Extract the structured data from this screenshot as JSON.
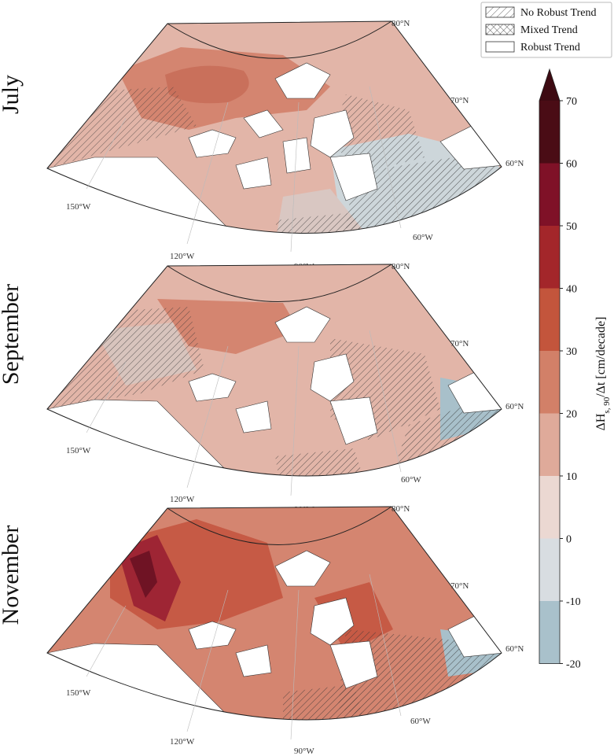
{
  "panels": [
    {
      "label": "July"
    },
    {
      "label": "September"
    },
    {
      "label": "November"
    }
  ],
  "latitude_labels": [
    "80°N",
    "70°N",
    "60°N"
  ],
  "longitude_labels": [
    "150°W",
    "120°W",
    "90°W",
    "60°W"
  ],
  "legend": {
    "items": [
      {
        "label": "No Robust Trend",
        "pattern": "hatch-diagonal"
      },
      {
        "label": "Mixed Trend",
        "pattern": "hatch-cross"
      },
      {
        "label": "Robust Trend",
        "pattern": "none"
      }
    ]
  },
  "colorbar": {
    "title": "ΔH",
    "title_sub": "s, 90",
    "title_rest": "/Δt [cm/decade]",
    "ticks": [
      "70",
      "60",
      "50",
      "40",
      "30",
      "20",
      "10",
      "0",
      "-10",
      "-20"
    ],
    "extend": "max",
    "colors": [
      "#4a0c15",
      "#7f1127",
      "#a3262a",
      "#c3553c",
      "#d28068",
      "#dfaa9a",
      "#ebd8d2",
      "#d8dde1",
      "#a9c1cb"
    ],
    "extend_color": "#3d0a12"
  },
  "colors": {
    "land": "#ffffff",
    "coast": "#333333",
    "light_red": "#e2b5a8",
    "mid_red": "#d48570",
    "strong_red": "#c65a45",
    "dark_red": "#9e2534",
    "neutral": "#ebd9d2",
    "blue": "#a8c0ca"
  }
}
